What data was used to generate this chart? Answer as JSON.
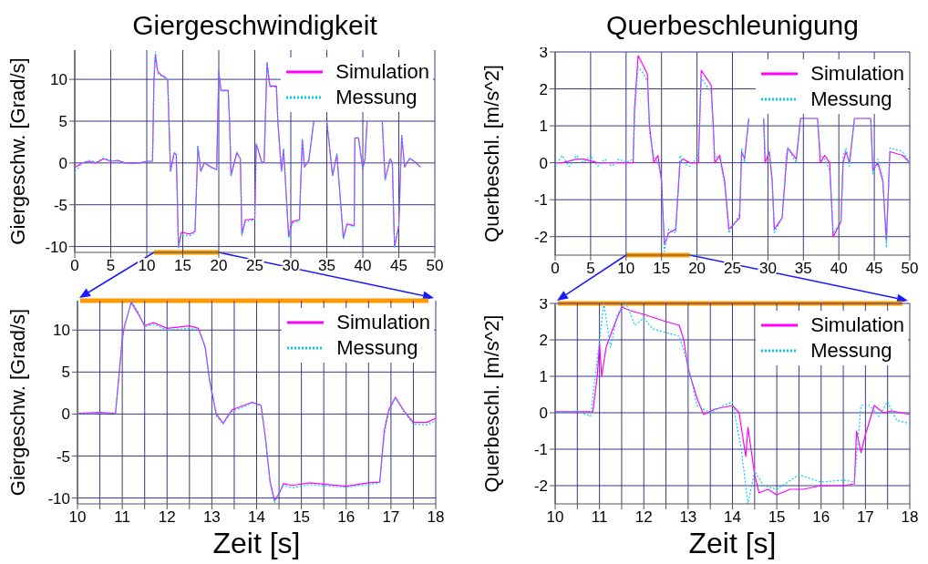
{
  "chart_data": [
    {
      "type": "line",
      "title": "Giergeschwindigkeit",
      "ylabel": "Giergeschw. [Grad/s]",
      "xlim": [
        0,
        50
      ],
      "xticks": [
        0,
        5,
        10,
        15,
        20,
        25,
        30,
        35,
        40,
        45,
        50
      ],
      "ylim": [
        -10.7,
        13.5
      ],
      "yticks": [
        -10,
        -5,
        0,
        5,
        10
      ],
      "grid": true,
      "legend": "top right",
      "marker": "none",
      "x": [
        0,
        0.5,
        1,
        2,
        3,
        4,
        5,
        6,
        7,
        8,
        9,
        10,
        10.8,
        11,
        11.2,
        11.5,
        12,
        12.5,
        12.9,
        13.3,
        13.8,
        14.1,
        14.4,
        14.8,
        16,
        16.7,
        17.1,
        17.5,
        18,
        19,
        19.7,
        20,
        20.3,
        21.3,
        21.5,
        21.7,
        22.5,
        23,
        23.2,
        23.7,
        25,
        25.2,
        26,
        26.3,
        26.7,
        27.1,
        28,
        28.2,
        28.7,
        29,
        29.7,
        30.2,
        31.2,
        31.6,
        31.9,
        32.5,
        33.2,
        33.5,
        34.8,
        35,
        35.8,
        36.4,
        37.3,
        37.8,
        38.8,
        38.9,
        39.4,
        40,
        40.3,
        40.6,
        40.9,
        42.5,
        42.7,
        43.1,
        43.8,
        44.1,
        44.4,
        45,
        45.4,
        45.8,
        46.5,
        47,
        48
      ],
      "series": [
        {
          "name": "Simulation",
          "color": "#ff00ff",
          "line_style": "solid",
          "values": [
            -0.5,
            -0.3,
            0,
            0.2,
            0,
            0.5,
            0.2,
            0.3,
            0,
            0,
            0,
            0.2,
            0.2,
            10,
            13,
            11,
            10.5,
            10.3,
            10,
            -1,
            1.2,
            1,
            -10,
            -8.3,
            -8.5,
            -8.2,
            2,
            -1,
            0,
            -0.5,
            -0.8,
            11,
            8.7,
            8.7,
            5,
            -1.5,
            1.2,
            0.5,
            -8.5,
            -6.8,
            -6.7,
            2.3,
            0,
            0.2,
            12,
            9.2,
            9.2,
            5,
            -1,
            1.6,
            -8.8,
            -7,
            -6.8,
            2.8,
            -0.5,
            0.3,
            5,
            null,
            null,
            5,
            -1.5,
            1,
            -9,
            -7.3,
            -7.5,
            3,
            3,
            -0.7,
            0.5,
            5,
            null,
            null,
            5,
            -2,
            0.5,
            0,
            -10,
            -7.5,
            3.3,
            -0.5,
            0.5,
            0.3,
            -0.5
          ]
        },
        {
          "name": "Messung",
          "color": "#00ccff",
          "line_style": "dotted",
          "values": [
            -1,
            -0.6,
            0,
            0.3,
            0.1,
            0.6,
            0.3,
            0.2,
            0,
            -0.1,
            0,
            0.2,
            0.2,
            10,
            13.3,
            10.8,
            10.4,
            10.2,
            10,
            -1,
            1.3,
            1,
            -10.3,
            -8.6,
            -8.7,
            -8.4,
            2,
            -1,
            0,
            -0.6,
            -0.8,
            11,
            8.6,
            8.6,
            5,
            -1.5,
            1.3,
            0.5,
            -8.7,
            -7,
            -6.8,
            2.3,
            0,
            0.2,
            12,
            9.1,
            9.1,
            5,
            -1,
            1.7,
            -9,
            -7.2,
            -6.9,
            2.8,
            -0.5,
            0.3,
            5,
            null,
            null,
            5,
            -1.5,
            1.1,
            -9.2,
            -7.4,
            -7.6,
            3,
            3,
            -0.7,
            0.5,
            5,
            null,
            null,
            5,
            -2,
            0.5,
            0,
            -10.2,
            -7.6,
            3.3,
            -0.5,
            0.6,
            0.3,
            -0.5
          ]
        }
      ]
    },
    {
      "type": "line",
      "title": "Querbeschleunigung",
      "ylabel": "Querbeschl. [m/s^2]",
      "xlim": [
        0,
        50
      ],
      "xticks": [
        0,
        5,
        10,
        15,
        20,
        25,
        30,
        35,
        40,
        45,
        50
      ],
      "ylim": [
        -2.5,
        3
      ],
      "yticks": [
        -2,
        -1,
        0,
        1,
        2,
        3
      ],
      "grid": true,
      "legend": "top right",
      "marker": "none",
      "x": [
        0,
        1,
        2,
        3,
        4,
        5,
        6,
        7,
        8,
        9,
        10,
        11,
        11.2,
        11.7,
        12.5,
        13,
        13.3,
        13.9,
        14.5,
        15,
        15.4,
        16,
        17,
        17.6,
        18,
        19,
        20.2,
        20.6,
        21.3,
        22,
        22.3,
        22.5,
        23.2,
        23.9,
        24.5,
        26,
        26.3,
        26.7,
        27.3,
        27.5,
        29.4,
        29.6,
        30.2,
        30.6,
        30.9,
        32,
        32.6,
        32.8,
        34,
        34.6,
        37,
        37.4,
        38,
        38.7,
        39.2,
        40.3,
        40.6,
        41,
        41.5,
        42.2,
        44.5,
        44.8,
        45.5,
        46.2,
        46.7,
        47.2,
        49,
        50
      ],
      "series": [
        {
          "name": "Simulation",
          "color": "#ff00ff",
          "line_style": "solid",
          "values": [
            0,
            0,
            0.05,
            0.1,
            0.1,
            0.05,
            0,
            0,
            0,
            0,
            0,
            0,
            1.5,
            2.9,
            2.6,
            2.4,
            1,
            0,
            0.2,
            -0.5,
            -2.2,
            -1.9,
            -1.8,
            0,
            0.1,
            0,
            0,
            2.5,
            2.3,
            2.1,
            1,
            0,
            0.2,
            -0.5,
            -1.8,
            -1.5,
            0.3,
            0.1,
            1.2,
            null,
            1.2,
            0,
            0.3,
            -0.5,
            -1.8,
            -1.5,
            0,
            0.4,
            0.1,
            1.2,
            1.2,
            0,
            0.2,
            0,
            -2,
            -1.6,
            0,
            0.3,
            0,
            1.2,
            1.2,
            -0.2,
            0,
            -0.5,
            -2.1,
            0.3,
            0.2,
            0
          ]
        },
        {
          "name": "Messung",
          "color": "#00ccff",
          "line_style": "dotted",
          "values": [
            -0.1,
            0.2,
            -0.1,
            0.2,
            0,
            0.2,
            -0.1,
            0.1,
            -0.1,
            0.1,
            0,
            0.1,
            1.3,
            2.6,
            2.4,
            2.2,
            0.8,
            0.2,
            0,
            -0.5,
            -2.4,
            -1.8,
            -1.9,
            0.2,
            0,
            -0.1,
            0.2,
            2.3,
            2.1,
            1.9,
            0.8,
            0.2,
            0.1,
            -0.6,
            -1.9,
            -1.4,
            0.4,
            0,
            1.2,
            null,
            1.2,
            0.2,
            0.3,
            -0.4,
            -1.9,
            -1.5,
            0.2,
            0.4,
            0,
            1.2,
            1.2,
            0.2,
            0.1,
            -0.2,
            -1.9,
            -1.6,
            0.2,
            0.4,
            -0.1,
            1.2,
            1.2,
            -0.3,
            0.1,
            -0.4,
            -2.3,
            0.4,
            0.3,
            0
          ]
        }
      ]
    },
    {
      "type": "line",
      "ylabel": "Giergeschw. [Grad/s]",
      "xlabel": "Zeit [s]",
      "xlim": [
        10,
        18
      ],
      "xticks": [
        10,
        {
          "value": 10.5,
          "label": null
        },
        11,
        {
          "value": 11.5,
          "label": null
        },
        12,
        {
          "value": 12.5,
          "label": null
        },
        13,
        {
          "value": 13.5,
          "label": null
        },
        14,
        {
          "value": 14.5,
          "label": null
        },
        15,
        {
          "value": 15.5,
          "label": null
        },
        16,
        {
          "value": 16.5,
          "label": null
        },
        17,
        {
          "value": 17.5,
          "label": null
        },
        18
      ],
      "ylim": [
        -10.7,
        13.5
      ],
      "yticks": [
        -10,
        -5,
        0,
        5,
        10
      ],
      "grid": true,
      "legend": "top right",
      "marker": "none",
      "x": [
        10,
        10.5,
        10.85,
        11,
        11.05,
        11.2,
        11.35,
        11.5,
        11.7,
        12,
        12.5,
        12.7,
        12.85,
        12.95,
        13.1,
        13.25,
        13.45,
        13.9,
        14.1,
        14.2,
        14.3,
        14.4,
        14.5,
        14.6,
        14.8,
        15.2,
        15.6,
        16,
        16.5,
        16.75,
        16.85,
        16.95,
        17.1,
        17.3,
        17.5,
        17.8,
        18
      ],
      "series": [
        {
          "name": "Simulation",
          "color": "#ff00ff",
          "line_style": "solid",
          "values": [
            0.1,
            0.2,
            0.1,
            9,
            10.5,
            13.3,
            12,
            10.5,
            10.9,
            10.2,
            10.5,
            10.2,
            8,
            4,
            0,
            -1.1,
            0.5,
            1.4,
            1,
            -3,
            -8,
            -10.3,
            -9.5,
            -8.3,
            -8.5,
            -8.2,
            -8.4,
            -8.6,
            -8.2,
            -8.1,
            -2,
            0.5,
            2,
            0.3,
            -1,
            -1,
            -0.5
          ]
        },
        {
          "name": "Messung",
          "color": "#00ccff",
          "line_style": "dotted",
          "values": [
            0,
            0.1,
            0.1,
            8.5,
            10.3,
            13.5,
            12.2,
            10.4,
            10.7,
            10,
            10.2,
            10,
            8,
            4,
            -0.2,
            -1.2,
            0.3,
            1.3,
            1.1,
            -3,
            -8.2,
            -10.6,
            -9.4,
            -8.5,
            -8.8,
            -8.4,
            -8.6,
            -8.7,
            -8.4,
            -8.2,
            -2.5,
            0.3,
            1.9,
            0.2,
            -1.2,
            -1.3,
            -0.8
          ]
        }
      ]
    },
    {
      "type": "line",
      "ylabel": "Querbeschl. [m/s^2]",
      "xlabel": "Zeit [s]",
      "xlim": [
        10,
        18
      ],
      "xticks": [
        10,
        {
          "value": 10.5,
          "label": null
        },
        11,
        {
          "value": 11.5,
          "label": null
        },
        12,
        {
          "value": 12.5,
          "label": null
        },
        13,
        {
          "value": 13.5,
          "label": null
        },
        14,
        {
          "value": 14.5,
          "label": null
        },
        15,
        {
          "value": 15.5,
          "label": null
        },
        16,
        {
          "value": 16.5,
          "label": null
        },
        17,
        {
          "value": 17.5,
          "label": null
        },
        18
      ],
      "ylim": [
        -2.5,
        3
      ],
      "yticks": [
        -2,
        -1,
        0,
        1,
        2,
        3
      ],
      "grid": true,
      "legend": "top right",
      "marker": "none",
      "series": [
        {
          "name": "Simulation",
          "color": "#ff00ff",
          "line_style": "solid",
          "x": [
            10,
            10.85,
            10.95,
            11,
            11.05,
            11.15,
            11.3,
            11.5,
            11.7,
            12,
            12.5,
            12.8,
            12.9,
            13,
            13.2,
            13.35,
            13.6,
            14,
            14.15,
            14.3,
            14.35,
            14.5,
            14.6,
            14.8,
            15,
            15.3,
            15.6,
            16,
            16.5,
            16.75,
            16.8,
            16.9,
            17,
            17.2,
            17.4,
            17.6,
            18
          ],
          "values": [
            0.03,
            0.03,
            1,
            1.9,
            1,
            1.8,
            2.3,
            2.9,
            2.8,
            2.7,
            2.5,
            2.4,
            2,
            1.2,
            0.4,
            -0.05,
            0.1,
            0.2,
            0,
            -1.2,
            -0.4,
            -1.7,
            -2.2,
            -2.1,
            -2.25,
            -2.1,
            -2.1,
            -2,
            -2,
            -1.95,
            -0.5,
            -1.1,
            -0.6,
            0.2,
            0,
            0.05,
            -0.05
          ]
        },
        {
          "name": "Messung",
          "color": "#00ccff",
          "line_style": "dotted",
          "x": [
            10,
            10.5,
            10.8,
            11,
            11.1,
            11.25,
            11.4,
            11.6,
            11.8,
            12,
            12.2,
            12.5,
            12.8,
            13,
            13.2,
            13.5,
            13.8,
            14,
            14.2,
            14.35,
            14.5,
            14.7,
            15,
            15.5,
            16,
            16.5,
            16.75,
            16.9,
            17.1,
            17.3,
            17.5,
            17.7,
            18
          ],
          "values": [
            0,
            0.05,
            -0.1,
            2,
            3,
            1.8,
            2.7,
            3,
            2.4,
            2.6,
            2.3,
            2.2,
            2.1,
            1.3,
            0.2,
            0,
            0.2,
            0.3,
            -1,
            -2.5,
            -1.6,
            -2,
            -2.1,
            -1.7,
            -1.9,
            -1.85,
            -1.9,
            0.2,
            0.2,
            -0.1,
            0.3,
            -0.2,
            -0.3
          ]
        }
      ]
    }
  ]
}
